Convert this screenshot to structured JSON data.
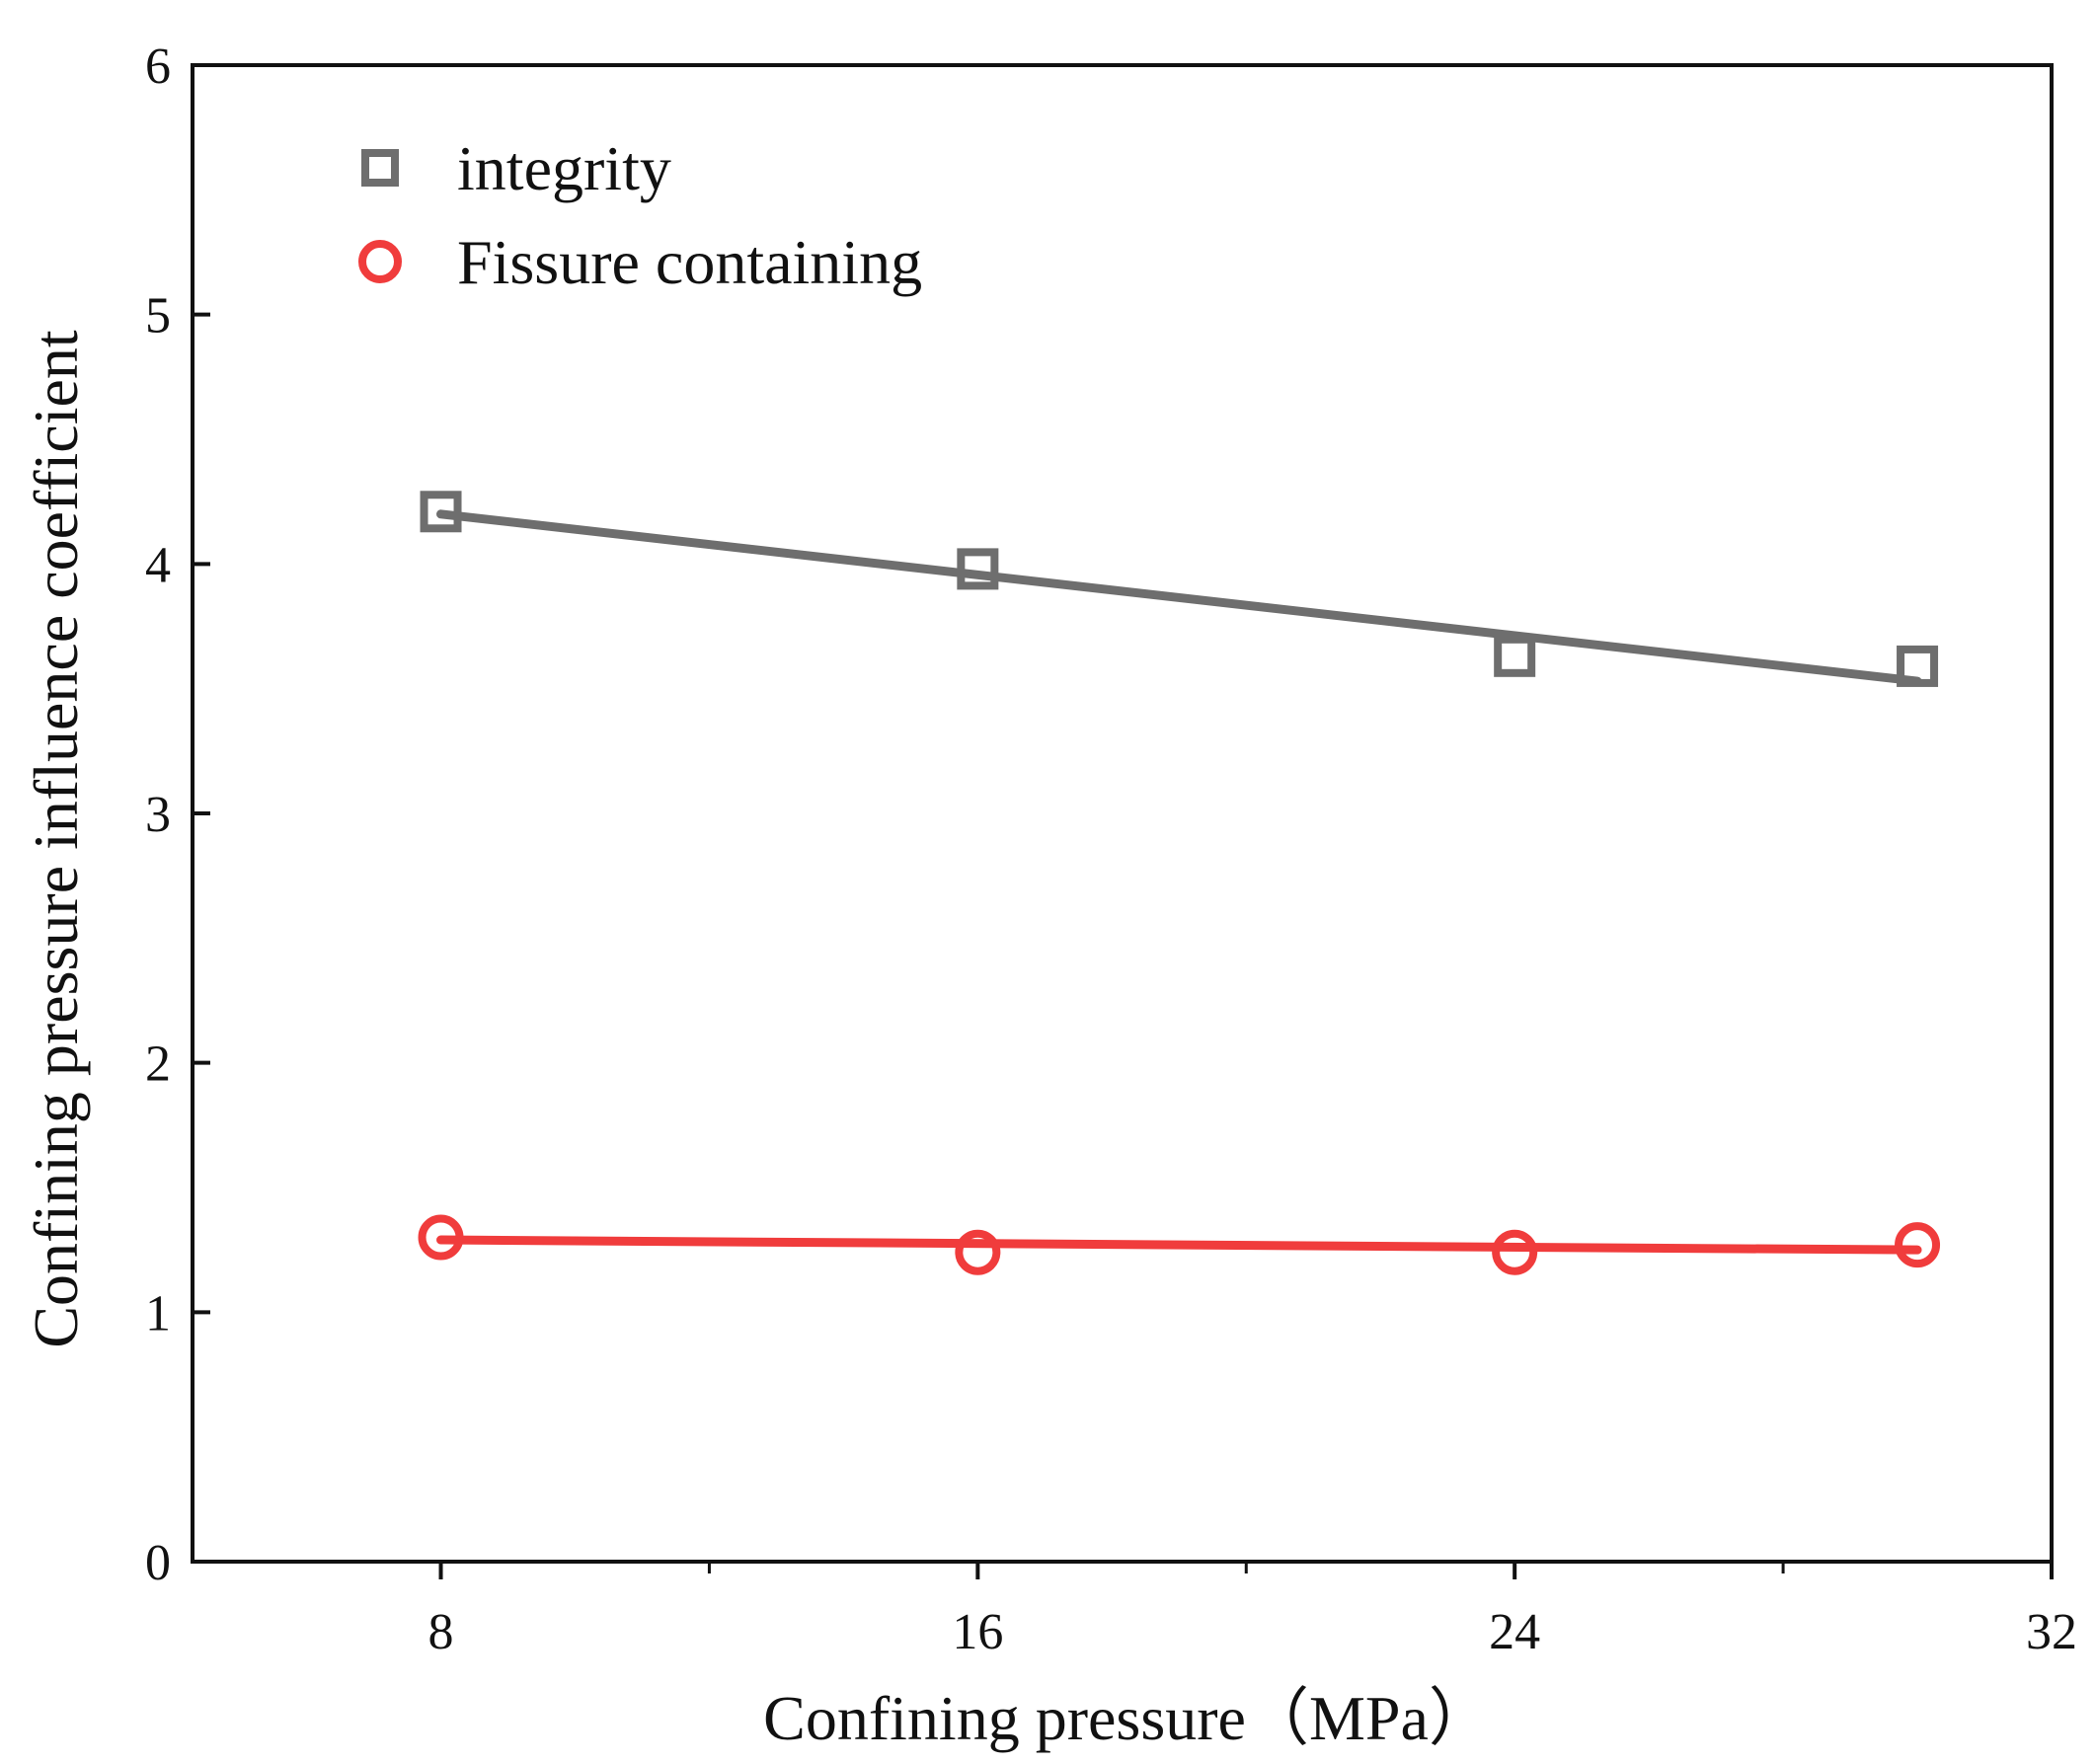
{
  "chart_data": {
    "type": "scatter",
    "title": "",
    "xlabel": "Confining pressure（MPa）",
    "ylabel": "Confining pressure influence coefficient",
    "xlim": [
      4.3,
      32
    ],
    "ylim": [
      0,
      6
    ],
    "x_ticks": [
      8,
      16,
      24,
      32
    ],
    "x_minor_ticks": [
      12,
      20,
      28
    ],
    "y_ticks": [
      0,
      1,
      2,
      3,
      4,
      5,
      6
    ],
    "grid": false,
    "legend_position": "top-left",
    "series": [
      {
        "name": "integrity",
        "marker": "square",
        "color": "#6e6e6e",
        "x": [
          8,
          16,
          24,
          30
        ],
        "y": [
          4.21,
          3.98,
          3.63,
          3.59
        ],
        "fit_line": {
          "x": [
            8,
            30
          ],
          "y": [
            4.2,
            3.53
          ]
        }
      },
      {
        "name": "Fissure containing",
        "marker": "circle",
        "color": "#f03c3c",
        "x": [
          8,
          16,
          24,
          30
        ],
        "y": [
          1.3,
          1.24,
          1.24,
          1.27
        ],
        "fit_line": {
          "x": [
            8,
            30
          ],
          "y": [
            1.29,
            1.25
          ]
        }
      }
    ]
  }
}
